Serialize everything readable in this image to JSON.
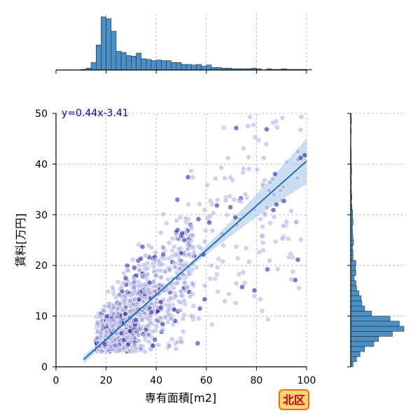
{
  "chart_data": {
    "type": "scatter",
    "xlabel": "専有面積[m2]",
    "ylabel": "賃料[万円]",
    "xlim": [
      0,
      100
    ],
    "ylim": [
      0,
      50
    ],
    "x_ticks": [
      "0",
      "20",
      "40",
      "60",
      "80",
      "100"
    ],
    "y_ticks": [
      "0",
      "10",
      "20",
      "30",
      "40",
      "50"
    ],
    "grid": true,
    "regression": {
      "equation_label": "y=0.44x-3.41",
      "slope": 0.44,
      "intercept": -3.41,
      "x_range": [
        11,
        100
      ]
    },
    "area_badge": "北区",
    "marginal_x": {
      "bin_start": 10,
      "bin_width": 2,
      "counts": [
        1,
        3,
        12,
        40,
        85,
        82,
        62,
        30,
        28,
        23,
        22,
        27,
        18,
        17,
        15,
        16,
        15,
        15,
        12,
        12,
        9,
        9,
        8,
        9,
        6,
        8,
        4,
        4,
        3,
        3,
        2,
        2,
        2,
        2,
        3,
        2,
        0,
        2,
        1,
        1,
        2,
        1,
        1,
        1,
        1,
        1
      ]
    },
    "marginal_y": {
      "bin_start": 0,
      "bin_width": 1,
      "counts": [
        10,
        25,
        40,
        60,
        100,
        120,
        180,
        230,
        210,
        170,
        90,
        60,
        48,
        45,
        35,
        25,
        22,
        15,
        22,
        20,
        22,
        10,
        10,
        8,
        12,
        10,
        8,
        7,
        10,
        8,
        8,
        5,
        3,
        5,
        3,
        2,
        3,
        2,
        4,
        3,
        2,
        2,
        2,
        1,
        1,
        0,
        2,
        0,
        3,
        2
      ]
    },
    "colors": {
      "hist_fill": "#4a90c6",
      "point_light": "#9999dd",
      "point_dark": "#1010aa",
      "regression_line": "#2171b5",
      "ci_band": "#a6c8e8",
      "equation_text": "#0000cc",
      "badge_fill": "#ffd47a",
      "badge_border": "#ff6a00",
      "badge_text": "#cc0000"
    }
  }
}
